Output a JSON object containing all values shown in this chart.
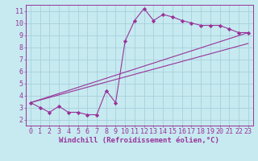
{
  "background_color": "#c6eaf0",
  "grid_color": "#a8d0dc",
  "line_color": "#993399",
  "xlabel": "Windchill (Refroidissement éolien,°C)",
  "xlim": [
    -0.5,
    23.5
  ],
  "ylim": [
    1.5,
    11.5
  ],
  "xticks": [
    0,
    1,
    2,
    3,
    4,
    5,
    6,
    7,
    8,
    9,
    10,
    11,
    12,
    13,
    14,
    15,
    16,
    17,
    18,
    19,
    20,
    21,
    22,
    23
  ],
  "yticks": [
    2,
    3,
    4,
    5,
    6,
    7,
    8,
    9,
    10,
    11
  ],
  "main_x": [
    0,
    1,
    2,
    3,
    4,
    5,
    6,
    7,
    8,
    9,
    10,
    11,
    12,
    13,
    14,
    15,
    16,
    17,
    18,
    19,
    20,
    21,
    22,
    23
  ],
  "main_y": [
    3.4,
    3.0,
    2.6,
    3.1,
    2.6,
    2.6,
    2.4,
    2.4,
    4.4,
    3.4,
    8.5,
    10.2,
    11.2,
    10.2,
    10.7,
    10.5,
    10.2,
    10.0,
    9.8,
    9.8,
    9.8,
    9.5,
    9.2,
    9.2
  ],
  "trend1_x": [
    0,
    23
  ],
  "trend1_y": [
    3.4,
    9.2
  ],
  "trend2_x": [
    0,
    23
  ],
  "trend2_y": [
    3.4,
    8.3
  ],
  "font_size": 6.5,
  "tick_font_size": 6.0,
  "xlabel_font_size": 6.5
}
